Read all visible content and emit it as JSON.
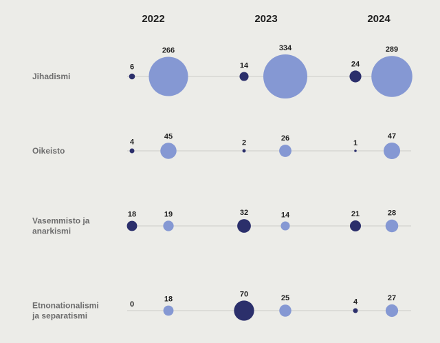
{
  "chart_data": {
    "type": "scatter",
    "years": [
      "2022",
      "2023",
      "2024"
    ],
    "series": [
      {
        "name": "",
        "color": "#2b2f6b"
      },
      {
        "name": "",
        "color": "#8598d3"
      }
    ],
    "categories": [
      {
        "label": [
          "Jihadismi"
        ],
        "values": [
          [
            6,
            266
          ],
          [
            14,
            334
          ],
          [
            24,
            289
          ]
        ]
      },
      {
        "label": [
          "Oikeisto"
        ],
        "values": [
          [
            4,
            45
          ],
          [
            2,
            26
          ],
          [
            1,
            47
          ]
        ]
      },
      {
        "label": [
          "Vasemmisto ja",
          "anarkismi"
        ],
        "values": [
          [
            18,
            19
          ],
          [
            32,
            14
          ],
          [
            21,
            28
          ]
        ]
      },
      {
        "label": [
          "Etnonationalismi",
          "ja separatismi"
        ],
        "values": [
          [
            0,
            18
          ],
          [
            70,
            25
          ],
          [
            4,
            27
          ]
        ]
      }
    ],
    "bubble_size": "area",
    "grid": false
  }
}
